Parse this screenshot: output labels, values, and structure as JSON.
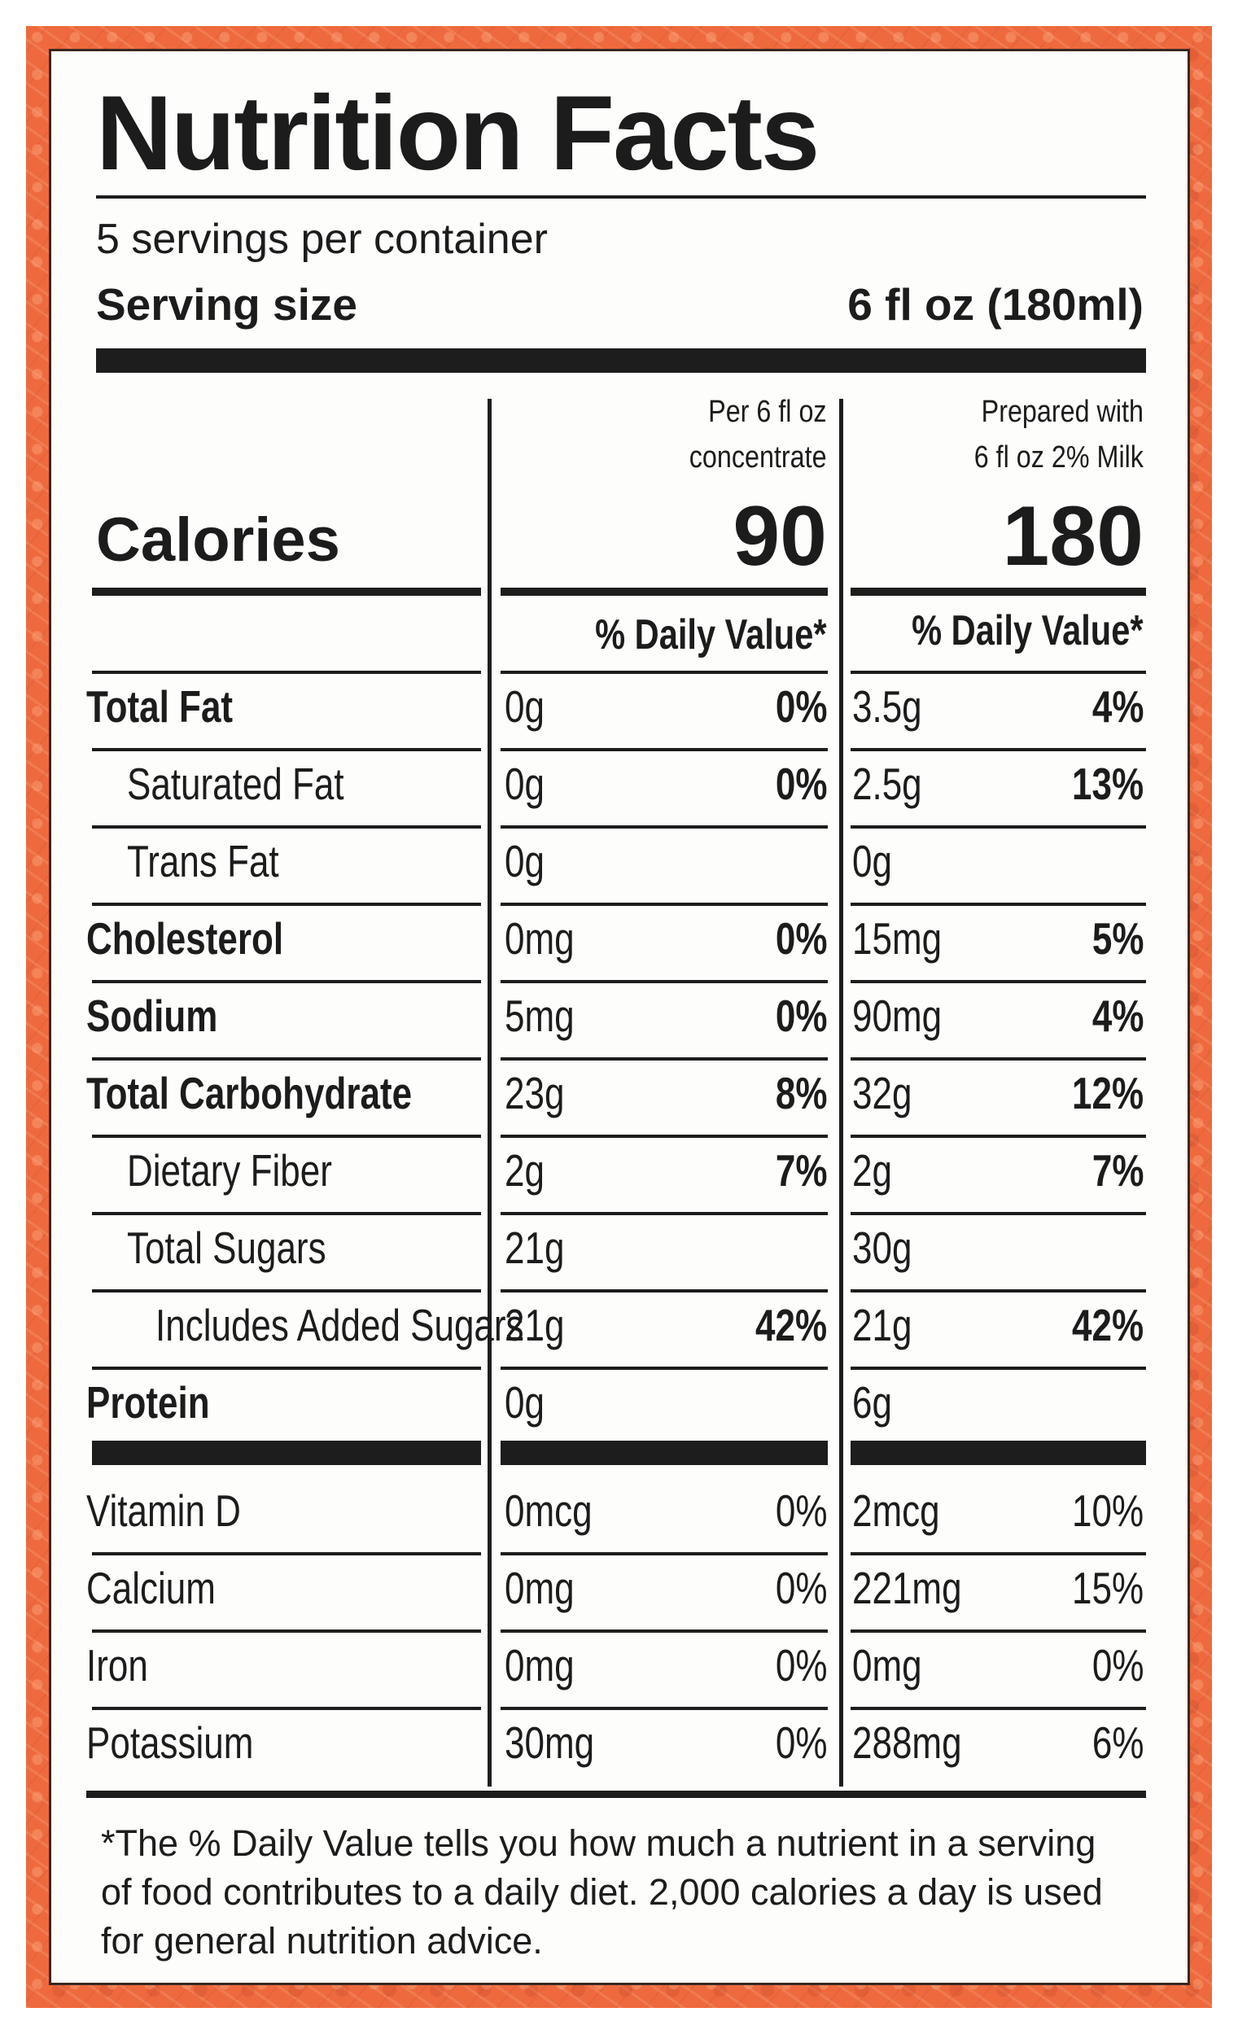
{
  "title": "Nutrition Facts",
  "servings_per_container": "5 servings per container",
  "serving_size_label": "Serving size",
  "serving_size_value": "6 fl oz (180ml)",
  "columns": [
    {
      "header_line1": "Per 6 fl oz",
      "header_line2": "concentrate",
      "calories": "90"
    },
    {
      "header_line1": "Prepared with",
      "header_line2": "6 fl oz 2% Milk",
      "calories": "180"
    }
  ],
  "calories_label": "Calories",
  "daily_value_header": "% Daily Value*",
  "nutrients": [
    {
      "name": "Total Fat",
      "bold": true,
      "indent": 0,
      "c1_amt": "0g",
      "c1_dv": "0%",
      "c2_amt": "3.5g",
      "c2_dv": "4%"
    },
    {
      "name": "Saturated Fat",
      "bold": false,
      "indent": 1,
      "c1_amt": "0g",
      "c1_dv": "0%",
      "c2_amt": "2.5g",
      "c2_dv": "13%"
    },
    {
      "name": "Trans Fat",
      "bold": false,
      "indent": 1,
      "c1_amt": "0g",
      "c1_dv": "",
      "c2_amt": "0g",
      "c2_dv": ""
    },
    {
      "name": "Cholesterol",
      "bold": true,
      "indent": 0,
      "c1_amt": "0mg",
      "c1_dv": "0%",
      "c2_amt": "15mg",
      "c2_dv": "5%"
    },
    {
      "name": "Sodium",
      "bold": true,
      "indent": 0,
      "c1_amt": "5mg",
      "c1_dv": "0%",
      "c2_amt": "90mg",
      "c2_dv": "4%"
    },
    {
      "name": "Total Carbohydrate",
      "bold": true,
      "indent": 0,
      "c1_amt": "23g",
      "c1_dv": "8%",
      "c2_amt": "32g",
      "c2_dv": "12%"
    },
    {
      "name": "Dietary Fiber",
      "bold": false,
      "indent": 1,
      "c1_amt": "2g",
      "c1_dv": "7%",
      "c2_amt": "2g",
      "c2_dv": "7%"
    },
    {
      "name": "Total Sugars",
      "bold": false,
      "indent": 1,
      "c1_amt": "21g",
      "c1_dv": "",
      "c2_amt": "30g",
      "c2_dv": ""
    },
    {
      "name": "Includes Added Sugars",
      "bold": false,
      "indent": 2,
      "c1_amt": "21g",
      "c1_dv": "42%",
      "c2_amt": "21g",
      "c2_dv": "42%"
    },
    {
      "name": "Protein",
      "bold": true,
      "indent": 0,
      "c1_amt": "0g",
      "c1_dv": "",
      "c2_amt": "6g",
      "c2_dv": ""
    }
  ],
  "vitamins": [
    {
      "name": "Vitamin D",
      "c1_amt": "0mcg",
      "c1_dv": "0%",
      "c2_amt": "2mcg",
      "c2_dv": "10%"
    },
    {
      "name": "Calcium",
      "c1_amt": "0mg",
      "c1_dv": "0%",
      "c2_amt": "221mg",
      "c2_dv": "15%"
    },
    {
      "name": "Iron",
      "c1_amt": "0mg",
      "c1_dv": "0%",
      "c2_amt": "0mg",
      "c2_dv": "0%"
    },
    {
      "name": "Potassium",
      "c1_amt": "30mg",
      "c1_dv": "0%",
      "c2_amt": "288mg",
      "c2_dv": "6%"
    }
  ],
  "footnote": "*The % Daily Value tells you how much a nutrient in a serving of food contributes to a daily diet. 2,000 calories a day is used for general nutrition advice.",
  "colors": {
    "border_pattern": "#ee6a3e",
    "panel": "#fdfdfb",
    "ink": "#1d1d1d"
  }
}
